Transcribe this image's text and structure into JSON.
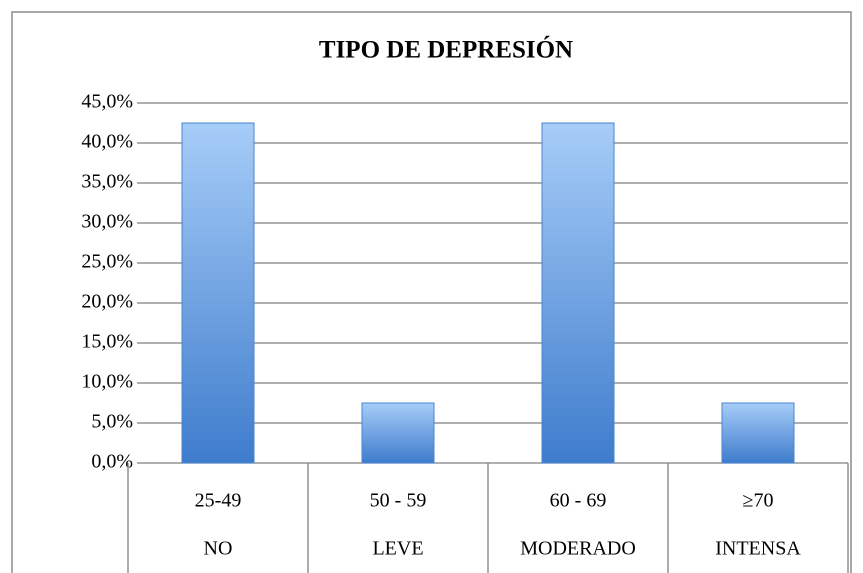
{
  "chart_data": {
    "type": "bar",
    "title": "TIPO DE DEPRESIÓN",
    "categories": [
      [
        "25-49",
        "NO"
      ],
      [
        "50 - 59",
        "LEVE"
      ],
      [
        "60 - 69",
        "MODERADO"
      ],
      [
        "≥70",
        "INTENSA"
      ]
    ],
    "values": [
      42.5,
      7.5,
      42.5,
      7.5
    ],
    "color": "#5b9be6",
    "ylim": [
      0,
      45
    ],
    "yticks": [
      {
        "value": 0,
        "label": "0,0%"
      },
      {
        "value": 5,
        "label": "5,0%"
      },
      {
        "value": 10,
        "label": "10,0%"
      },
      {
        "value": 15,
        "label": "15,0%"
      },
      {
        "value": 20,
        "label": "20,0%"
      },
      {
        "value": 25,
        "label": "25,0%"
      },
      {
        "value": 30,
        "label": "30,0%"
      },
      {
        "value": 35,
        "label": "35,0%"
      },
      {
        "value": 40,
        "label": "40,0%"
      },
      {
        "value": 45,
        "label": "45,0%"
      }
    ],
    "grid": true
  }
}
